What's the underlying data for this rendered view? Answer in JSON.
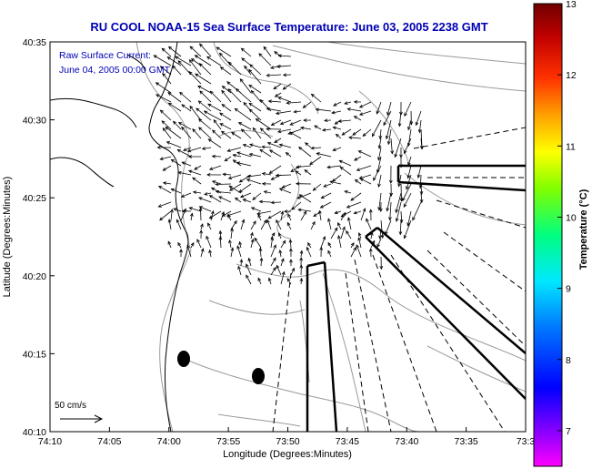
{
  "title": "RU COOL  NOAA-15  Sea Surface Temperature:  June 03, 2005 2238 GMT",
  "annotation": {
    "line1": "Raw Surface Current:",
    "line2": "June 04, 2005 00:00 GMT"
  },
  "x_axis": {
    "label": "Longitude (Degrees:Minutes)",
    "ticks": [
      "74:10",
      "74:05",
      "74:00",
      "73:55",
      "73:50",
      "73:45",
      "73:40",
      "73:35",
      "73:3"
    ]
  },
  "y_axis": {
    "label": "Latitude (Degrees:Minutes)",
    "ticks": [
      "40:35",
      "40:30",
      "40:25",
      "40:20",
      "40:15",
      "40:10"
    ]
  },
  "colorbar": {
    "label": "Temperature (°C)",
    "ticks": [
      "13",
      "12",
      "11",
      "10",
      "9",
      "8",
      "7"
    ],
    "min": 6.5,
    "max": 13,
    "colors": [
      "#ff00ff",
      "#8000ff",
      "#0000ff",
      "#0080ff",
      "#00ffff",
      "#00ff80",
      "#80ff00",
      "#ffff00",
      "#ffa000",
      "#ff4000",
      "#e00000",
      "#a00000",
      "#700000"
    ]
  },
  "scale_label": "50 cm/s",
  "colors": {
    "title": "#0000b4",
    "contours": "#9a9a9a",
    "vectors": "#000000"
  }
}
